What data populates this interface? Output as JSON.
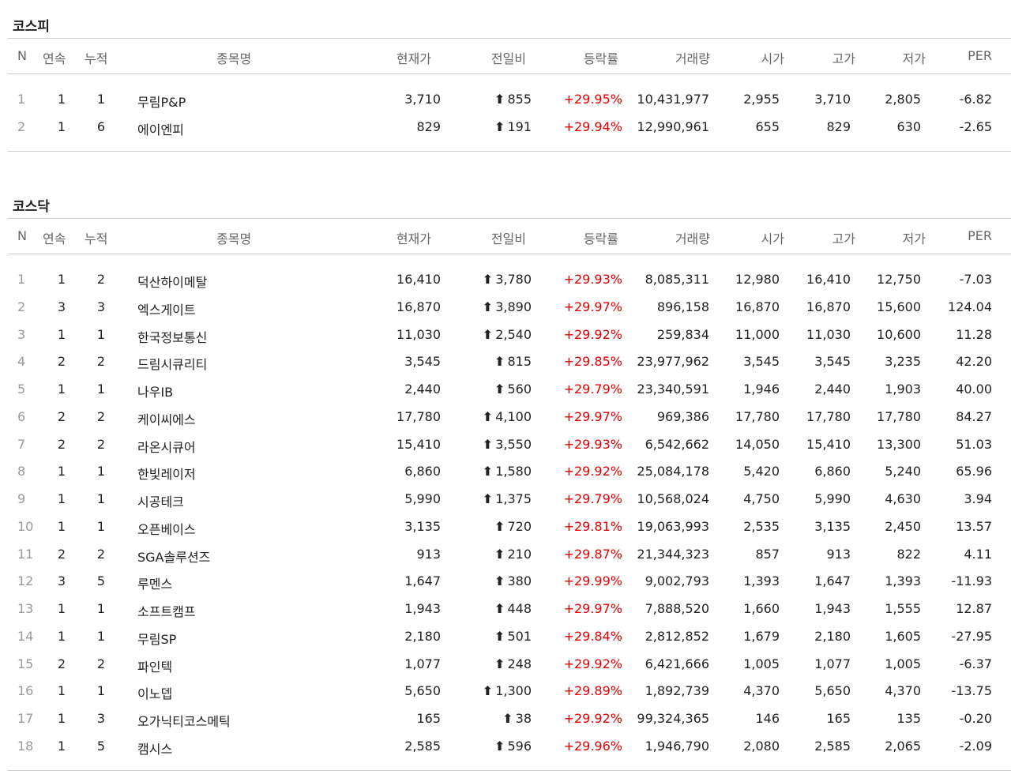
{
  "colors": {
    "up": "#e00000",
    "border": "#cccccc",
    "header_text": "#666666"
  },
  "columns": [
    "N",
    "연속",
    "누적",
    "종목명",
    "현재가",
    "전일비",
    "등락률",
    "거래량",
    "시가",
    "고가",
    "저가",
    "PER"
  ],
  "up_icon": "up-arrow-icon",
  "kospi": {
    "title": "코스피",
    "rows": [
      [
        "1",
        "1",
        "1",
        "무림P&P",
        "3,710",
        "855",
        "+29.95%",
        "10,431,977",
        "2,955",
        "3,710",
        "2,805",
        "-6.82"
      ],
      [
        "2",
        "1",
        "6",
        "에이엔피",
        "829",
        "191",
        "+29.94%",
        "12,990,961",
        "655",
        "829",
        "630",
        "-2.65"
      ]
    ]
  },
  "kosdaq": {
    "title": "코스닥",
    "rows": [
      [
        "1",
        "1",
        "2",
        "덕산하이메탈",
        "16,410",
        "3,780",
        "+29.93%",
        "8,085,311",
        "12,980",
        "16,410",
        "12,750",
        "-7.03"
      ],
      [
        "2",
        "3",
        "3",
        "엑스게이트",
        "16,870",
        "3,890",
        "+29.97%",
        "896,158",
        "16,870",
        "16,870",
        "15,600",
        "124.04"
      ],
      [
        "3",
        "1",
        "1",
        "한국정보통신",
        "11,030",
        "2,540",
        "+29.92%",
        "259,834",
        "11,000",
        "11,030",
        "10,600",
        "11.28"
      ],
      [
        "4",
        "2",
        "2",
        "드림시큐리티",
        "3,545",
        "815",
        "+29.85%",
        "23,977,962",
        "3,545",
        "3,545",
        "3,235",
        "42.20"
      ],
      [
        "5",
        "1",
        "1",
        "나우IB",
        "2,440",
        "560",
        "+29.79%",
        "23,340,591",
        "1,946",
        "2,440",
        "1,903",
        "40.00"
      ],
      [
        "6",
        "2",
        "2",
        "케이씨에스",
        "17,780",
        "4,100",
        "+29.97%",
        "969,386",
        "17,780",
        "17,780",
        "17,780",
        "84.27"
      ],
      [
        "7",
        "2",
        "2",
        "라온시큐어",
        "15,410",
        "3,550",
        "+29.93%",
        "6,542,662",
        "14,050",
        "15,410",
        "13,300",
        "51.03"
      ],
      [
        "8",
        "1",
        "1",
        "한빛레이저",
        "6,860",
        "1,580",
        "+29.92%",
        "25,084,178",
        "5,420",
        "6,860",
        "5,240",
        "65.96"
      ],
      [
        "9",
        "1",
        "1",
        "시공테크",
        "5,990",
        "1,375",
        "+29.79%",
        "10,568,024",
        "4,750",
        "5,990",
        "4,630",
        "3.94"
      ],
      [
        "10",
        "1",
        "1",
        "오픈베이스",
        "3,135",
        "720",
        "+29.81%",
        "19,063,993",
        "2,535",
        "3,135",
        "2,450",
        "13.57"
      ],
      [
        "11",
        "2",
        "2",
        "SGA솔루션즈",
        "913",
        "210",
        "+29.87%",
        "21,344,323",
        "857",
        "913",
        "822",
        "4.11"
      ],
      [
        "12",
        "3",
        "5",
        "루멘스",
        "1,647",
        "380",
        "+29.99%",
        "9,002,793",
        "1,393",
        "1,647",
        "1,393",
        "-11.93"
      ],
      [
        "13",
        "1",
        "1",
        "소프트캠프",
        "1,943",
        "448",
        "+29.97%",
        "7,888,520",
        "1,660",
        "1,943",
        "1,555",
        "12.87"
      ],
      [
        "14",
        "1",
        "1",
        "무림SP",
        "2,180",
        "501",
        "+29.84%",
        "2,812,852",
        "1,679",
        "2,180",
        "1,605",
        "-27.95"
      ],
      [
        "15",
        "2",
        "2",
        "파인텍",
        "1,077",
        "248",
        "+29.92%",
        "6,421,666",
        "1,005",
        "1,077",
        "1,005",
        "-6.37"
      ],
      [
        "16",
        "1",
        "1",
        "이노뎁",
        "5,650",
        "1,300",
        "+29.89%",
        "1,892,739",
        "4,370",
        "5,650",
        "4,370",
        "-13.75"
      ],
      [
        "17",
        "1",
        "3",
        "오가닉티코스메틱",
        "165",
        "38",
        "+29.92%",
        "99,324,365",
        "146",
        "165",
        "135",
        "-0.20"
      ],
      [
        "18",
        "1",
        "5",
        "캠시스",
        "2,585",
        "596",
        "+29.96%",
        "1,946,790",
        "2,080",
        "2,585",
        "2,065",
        "-2.09"
      ]
    ]
  }
}
